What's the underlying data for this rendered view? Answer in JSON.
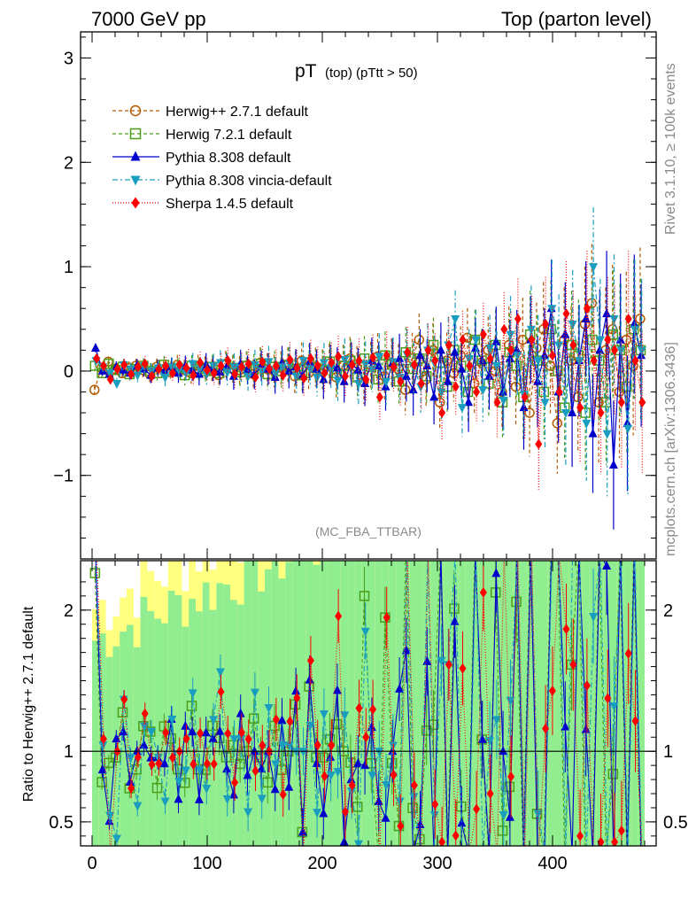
{
  "header": {
    "left": "7000 GeV pp",
    "right": "Top (parton level)"
  },
  "side_labels": {
    "rivet": "Rivet 3.1.10, ≥ 100k events",
    "mcplots": "mcplots.cern.ch [arXiv:1306.3436]"
  },
  "chart_data": [
    {
      "type": "scatter",
      "title_main": "pT",
      "title_sub": "(top)  (pTtt > 50)",
      "analysis": "(MC_FBA_TTBAR)",
      "xlim": [
        -10,
        490
      ],
      "ylim": [
        -1.8,
        3.25
      ],
      "yticks": [
        -1,
        0,
        1,
        2,
        3
      ],
      "ytick_labels": [
        "−1",
        "0",
        "1",
        "2",
        "3"
      ],
      "xticks": [
        0,
        100,
        200,
        300,
        400
      ],
      "xtick_labels": [
        "0",
        "100",
        "200",
        "300",
        "400"
      ],
      "x_step": 6,
      "x_start": 3,
      "n_points": 80,
      "legend_position": "top-left",
      "series": [
        {
          "name": "Herwig++ 2.7.1 default",
          "color": "#b35900",
          "marker": "open-circle",
          "dash": "4,3",
          "values": [
            -0.18,
            0.03,
            0.09,
            0.02,
            -0.02,
            0.03,
            0.05,
            0.01,
            -0.03,
            0.04,
            0.02,
            -0.01,
            0.06,
            0.01,
            -0.02,
            0.05,
            0.03,
            0.0,
            -0.04,
            0.07,
            0.02,
            0.01,
            0.05,
            -0.03,
            0.08,
            0.02,
            0.0,
            0.03,
            0.06,
            -0.05,
            0.1,
            -0.02,
            0.04,
            0.02,
            0.07,
            -0.06,
            0.05,
            0.12,
            0.03,
            -0.1,
            0.06,
            0.14,
            -0.05,
            0.08,
            0.02,
            -0.18,
            0.12,
            0.3,
            -0.08,
            0.2,
            -0.3,
            0.1,
            -0.02,
            0.15,
            0.32,
            -0.12,
            0.08,
            0.2,
            0.0,
            -0.2,
            0.25,
            -0.15,
            0.3,
            -0.4,
            0.22,
            0.4,
            0.05,
            -0.5,
            0.3,
            0.1,
            -0.25,
            0.45,
            0.65,
            -0.3,
            0.2,
            0.4,
            -0.2,
            0.3,
            0.05,
            0.5
          ]
        },
        {
          "name": "Herwig 7.2.1 default",
          "color": "#4b9e1a",
          "marker": "open-square",
          "dash": "4,3",
          "values": [
            0.05,
            -0.02,
            0.07,
            0.01,
            0.04,
            -0.03,
            0.02,
            0.05,
            0.0,
            -0.02,
            0.06,
            0.01,
            0.03,
            -0.04,
            0.05,
            0.02,
            0.0,
            0.04,
            -0.02,
            0.06,
            0.03,
            -0.01,
            0.05,
            0.02,
            0.07,
            -0.03,
            0.04,
            0.0,
            0.06,
            0.02,
            -0.04,
            0.08,
            0.03,
            0.01,
            0.09,
            -0.02,
            0.05,
            0.1,
            -0.06,
            0.12,
            0.04,
            -0.08,
            0.15,
            0.06,
            -0.1,
            0.18,
            0.02,
            0.12,
            -0.05,
            0.25,
            0.08,
            -0.15,
            0.2,
            0.05,
            -0.2,
            0.3,
            0.1,
            -0.12,
            0.25,
            -0.3,
            0.18,
            0.05,
            -0.25,
            0.35,
            0.1,
            -0.2,
            0.4,
            0.0,
            -0.35,
            0.25,
            0.15,
            -0.4,
            0.3,
            0.1,
            -0.3,
            0.35,
            0.2,
            -0.15,
            0.4,
            0.2
          ]
        },
        {
          "name": "Pythia 8.308 default",
          "color": "#0000cc",
          "marker": "filled-triangle-up",
          "dash": "",
          "values": [
            0.22,
            0.0,
            -0.03,
            0.04,
            0.01,
            -0.02,
            0.05,
            0.02,
            -0.04,
            0.03,
            0.0,
            0.04,
            -0.02,
            0.05,
            0.01,
            -0.03,
            0.06,
            0.02,
            -0.01,
            0.04,
            -0.05,
            0.07,
            0.01,
            -0.03,
            0.05,
            0.02,
            -0.06,
            0.08,
            0.0,
            0.04,
            -0.04,
            0.09,
            0.02,
            -0.08,
            0.06,
            0.03,
            -0.1,
            0.07,
            0.01,
            -0.12,
            0.1,
            0.05,
            -0.15,
            0.08,
            0.12,
            -0.05,
            -0.18,
            0.15,
            0.05,
            -0.25,
            0.2,
            -0.1,
            0.18,
            0.02,
            -0.3,
            0.22,
            0.1,
            -0.05,
            0.28,
            -0.2,
            0.12,
            0.2,
            -0.35,
            0.3,
            -0.1,
            0.15,
            0.6,
            -0.2,
            0.35,
            -0.4,
            0.1,
            0.5,
            -0.6,
            0.2,
            0.55,
            -0.9,
            0.3,
            -0.5,
            0.45,
            0.15
          ]
        },
        {
          "name": "Pythia 8.308 vincia-default",
          "color": "#1a9ebf",
          "marker": "filled-triangle-down",
          "dash": "6,3,2,3",
          "values": [
            0.1,
            0.04,
            -0.02,
            -0.12,
            0.06,
            0.02,
            -0.04,
            0.05,
            0.0,
            0.03,
            -0.06,
            0.04,
            0.01,
            -0.02,
            0.07,
            0.02,
            -0.03,
            0.05,
            0.08,
            -0.01,
            0.04,
            0.03,
            -0.05,
            0.06,
            0.0,
            0.09,
            -0.02,
            0.04,
            0.07,
            -0.05,
            0.1,
            0.02,
            -0.06,
            0.08,
            0.03,
            -0.09,
            0.11,
            0.05,
            -0.12,
            0.07,
            0.02,
            0.14,
            -0.1,
            0.09,
            -0.06,
            0.16,
            0.04,
            -0.15,
            0.2,
            0.08,
            -0.2,
            0.25,
            0.5,
            -0.35,
            0.12,
            0.3,
            -0.18,
            0.22,
            0.05,
            -0.28,
            0.35,
            0.15,
            -0.22,
            0.4,
            0.1,
            -0.3,
            0.6,
            0.25,
            -0.4,
            0.45,
            0.1,
            -0.5,
            1.0,
            0.3,
            -0.6,
            0.5,
            0.2,
            -0.55,
            0.4,
            0.2
          ]
        },
        {
          "name": "Sherpa 1.4.5 default",
          "color": "#ff0000",
          "marker": "filled-diamond",
          "dash": "1,2",
          "values": [
            0.12,
            0.05,
            -0.08,
            0.02,
            0.06,
            -0.03,
            0.04,
            0.07,
            -0.05,
            0.02,
            0.05,
            -0.02,
            0.06,
            0.03,
            -0.04,
            0.08,
            0.01,
            -0.02,
            0.05,
            0.1,
            -0.03,
            0.04,
            0.07,
            -0.06,
            0.09,
            0.02,
            0.05,
            -0.04,
            0.11,
            0.03,
            -0.07,
            0.12,
            0.05,
            -0.02,
            0.08,
            0.14,
            -0.05,
            0.06,
            0.1,
            -0.08,
            0.13,
            -0.25,
            0.15,
            0.04,
            -0.1,
            0.18,
            0.06,
            -0.12,
            0.2,
            0.1,
            -0.4,
            0.25,
            -0.15,
            0.3,
            0.05,
            -0.2,
            0.35,
            0.12,
            -0.3,
            0.4,
            0.2,
            0.5,
            -0.25,
            0.3,
            -0.7,
            0.45,
            0.15,
            -0.2,
            0.55,
            0.25,
            -0.35,
            0.6,
            0.1,
            -0.4,
            0.3,
            0.2,
            -0.3,
            0.5,
            0.1,
            -0.3
          ]
        }
      ]
    },
    {
      "type": "scatter",
      "ylabel": "Ratio to Herwig++ 2.7.1 default",
      "ylim": [
        0.33,
        2.35
      ],
      "yticks": [
        0.5,
        1,
        2
      ],
      "ytick_labels": [
        "0.5",
        "1",
        "2"
      ],
      "reference_line": 1,
      "band_colors": {
        "outer": "#ffff80",
        "inner": "#90ee90"
      },
      "note": "ratio values derived from the series above; out-of-range points clipped"
    }
  ]
}
